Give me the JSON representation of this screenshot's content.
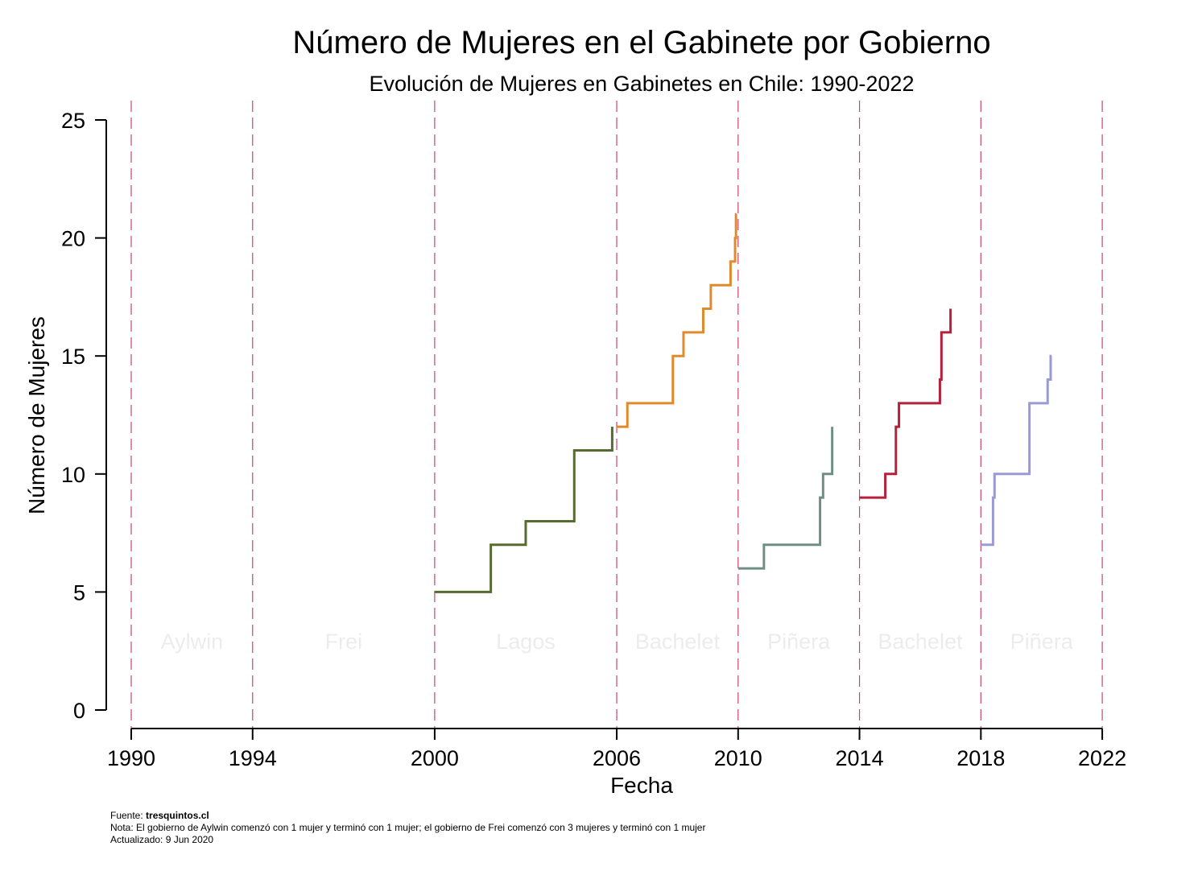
{
  "chart_data": {
    "type": "line",
    "title": "Número de Mujeres en el Gabinete por Gobierno",
    "subtitle": "Evolución de Mujeres en Gabinetes en Chile: 1990-2022",
    "xlabel": "Fecha",
    "ylabel": "Número de Mujeres",
    "xlim": [
      1990,
      2022
    ],
    "ylim": [
      0,
      25
    ],
    "x_ticks": [
      1990,
      1994,
      2000,
      2006,
      2010,
      2014,
      2018,
      2022
    ],
    "y_ticks": [
      0,
      5,
      10,
      15,
      20,
      25
    ],
    "grid": false,
    "government_boundaries": [
      1990,
      1994,
      2000,
      2006,
      2010,
      2014,
      2018,
      2022
    ],
    "government_labels": [
      {
        "name": "Aylwin",
        "x": 1992
      },
      {
        "name": "Frei",
        "x": 1997
      },
      {
        "name": "Lagos",
        "x": 2003
      },
      {
        "name": "Bachelet",
        "x": 2008
      },
      {
        "name": "Piñera",
        "x": 2012
      },
      {
        "name": "Bachelet",
        "x": 2016
      },
      {
        "name": "Piñera",
        "x": 2020
      }
    ],
    "series": [
      {
        "color": "#556b2f",
        "x": [
          2000.0,
          2001.85,
          2003.0,
          2004.6,
          2005.85
        ],
        "y": [
          5,
          7,
          8,
          11,
          12
        ]
      },
      {
        "color": "#e08a2c",
        "x": [
          2006.0,
          2006.35,
          2007.85,
          2008.2,
          2008.85,
          2009.1,
          2009.75,
          2009.9,
          2009.93
        ],
        "y": [
          12,
          13,
          15,
          16,
          17,
          18,
          19,
          20,
          21
        ]
      },
      {
        "color": "#6f8f85",
        "x": [
          2010.0,
          2010.85,
          2012.7,
          2012.8,
          2013.1
        ],
        "y": [
          6,
          7,
          9,
          10,
          12
        ]
      },
      {
        "color": "#b5213a",
        "x": [
          2014.0,
          2014.85,
          2015.2,
          2015.3,
          2016.65,
          2016.7,
          2017.0
        ],
        "y": [
          9,
          10,
          12,
          13,
          14,
          16,
          17
        ]
      },
      {
        "color": "#9a9ad6",
        "x": [
          2018.0,
          2018.4,
          2018.45,
          2019.6,
          2020.2,
          2020.3
        ],
        "y": [
          7,
          9,
          10,
          13,
          14,
          15
        ]
      }
    ],
    "series_end_x": [
      2005.85,
      2009.95,
      2013.1,
      2017.0,
      2020.33
    ],
    "boundary_line_color": "#c9446b"
  },
  "footer": {
    "source_prefix": "Fuente: ",
    "source_site": "tresquintos.cl",
    "note": "Nota: El gobierno de Aylwin comenzó con 1 mujer y terminó con 1 mujer; el gobierno de Frei comenzó con 3 mujeres y terminó con 1 mujer",
    "updated": "Actualizado:  9 Jun 2020"
  }
}
